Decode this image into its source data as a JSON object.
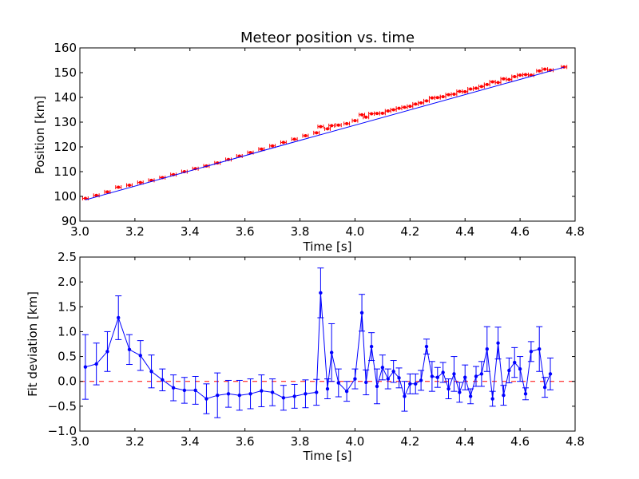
{
  "chart_data": [
    {
      "type": "scatter",
      "title": "Meteor position vs. time",
      "xlabel": "Time [s]",
      "ylabel": "Position [km]",
      "xlim": [
        3.0,
        4.8
      ],
      "ylim": [
        90,
        160
      ],
      "xticks": [
        "3.0",
        "3.2",
        "3.4",
        "3.6",
        "3.8",
        "4.0",
        "4.2",
        "4.4",
        "4.6",
        "4.8"
      ],
      "yticks": [
        "90",
        "100",
        "110",
        "120",
        "130",
        "140",
        "150",
        "160"
      ],
      "grid": false,
      "series": [
        {
          "kind": "points_with_xerror",
          "color": "#ff0000",
          "xerr": 0.01,
          "points": [
            [
              3.02,
              99.2
            ],
            [
              3.06,
              100.4
            ],
            [
              3.1,
              101.8
            ],
            [
              3.14,
              103.7
            ],
            [
              3.18,
              104.5
            ],
            [
              3.22,
              105.6
            ],
            [
              3.26,
              106.5
            ],
            [
              3.3,
              107.6
            ],
            [
              3.34,
              108.8
            ],
            [
              3.38,
              110.0
            ],
            [
              3.42,
              111.2
            ],
            [
              3.46,
              112.3
            ],
            [
              3.5,
              113.5
            ],
            [
              3.54,
              114.9
            ],
            [
              3.58,
              116.3
            ],
            [
              3.62,
              117.7
            ],
            [
              3.66,
              119.1
            ],
            [
              3.7,
              120.4
            ],
            [
              3.74,
              121.8
            ],
            [
              3.78,
              123.1
            ],
            [
              3.82,
              124.5
            ],
            [
              3.86,
              125.7
            ],
            [
              3.875,
              128.2
            ],
            [
              3.9,
              127.3
            ],
            [
              3.915,
              128.6
            ],
            [
              3.94,
              128.8
            ],
            [
              3.97,
              129.4
            ],
            [
              4.0,
              130.6
            ],
            [
              4.025,
              133.0
            ],
            [
              4.04,
              132.0
            ],
            [
              4.06,
              133.4
            ],
            [
              4.08,
              133.5
            ],
            [
              4.1,
              133.6
            ],
            [
              4.12,
              134.5
            ],
            [
              4.14,
              135.0
            ],
            [
              4.16,
              135.6
            ],
            [
              4.18,
              136.0
            ],
            [
              4.2,
              136.4
            ],
            [
              4.22,
              137.3
            ],
            [
              4.24,
              137.8
            ],
            [
              4.26,
              138.6
            ],
            [
              4.28,
              139.8
            ],
            [
              4.3,
              139.9
            ],
            [
              4.32,
              140.3
            ],
            [
              4.34,
              141.1
            ],
            [
              4.36,
              141.3
            ],
            [
              4.38,
              142.4
            ],
            [
              4.4,
              142.3
            ],
            [
              4.42,
              143.4
            ],
            [
              4.44,
              143.7
            ],
            [
              4.46,
              144.4
            ],
            [
              4.48,
              145.2
            ],
            [
              4.5,
              146.3
            ],
            [
              4.52,
              146.0
            ],
            [
              4.54,
              147.5
            ],
            [
              4.56,
              147.2
            ],
            [
              4.58,
              148.4
            ],
            [
              4.6,
              149.0
            ],
            [
              4.62,
              149.2
            ],
            [
              4.64,
              149.0
            ],
            [
              4.67,
              150.7
            ],
            [
              4.69,
              151.4
            ],
            [
              4.71,
              151.0
            ],
            [
              4.76,
              152.3
            ]
          ]
        },
        {
          "kind": "fit_line",
          "color": "#0000ff",
          "points": [
            [
              3.02,
              98.6
            ],
            [
              4.76,
              152.2
            ]
          ]
        }
      ]
    },
    {
      "type": "line",
      "title": "",
      "xlabel": "Time [s]",
      "ylabel": "Fit deviation [km]",
      "xlim": [
        3.0,
        4.8
      ],
      "ylim": [
        -1.0,
        2.5
      ],
      "xticks": [
        "3.0",
        "3.2",
        "3.4",
        "3.6",
        "3.8",
        "4.0",
        "4.2",
        "4.4",
        "4.6",
        "4.8"
      ],
      "yticks": [
        "−1.0",
        "−0.5",
        "0.0",
        "0.5",
        "1.0",
        "1.5",
        "2.0",
        "2.5"
      ],
      "grid": false,
      "zero_line": {
        "y": 0.0,
        "color": "#ff0000",
        "style": "dashed"
      },
      "series": [
        {
          "kind": "line_with_yerror",
          "color": "#0000ff",
          "points": [
            [
              3.02,
              0.29,
              0.65
            ],
            [
              3.06,
              0.35,
              0.42
            ],
            [
              3.1,
              0.6,
              0.4
            ],
            [
              3.14,
              1.28,
              0.44
            ],
            [
              3.18,
              0.64,
              0.3
            ],
            [
              3.22,
              0.52,
              0.3
            ],
            [
              3.26,
              0.2,
              0.33
            ],
            [
              3.3,
              0.03,
              0.22
            ],
            [
              3.34,
              -0.13,
              0.26
            ],
            [
              3.38,
              -0.18,
              0.26
            ],
            [
              3.42,
              -0.18,
              0.28
            ],
            [
              3.46,
              -0.35,
              0.3
            ],
            [
              3.5,
              -0.28,
              0.45
            ],
            [
              3.54,
              -0.25,
              0.27
            ],
            [
              3.58,
              -0.28,
              0.3
            ],
            [
              3.62,
              -0.25,
              0.3
            ],
            [
              3.66,
              -0.19,
              0.32
            ],
            [
              3.7,
              -0.22,
              0.27
            ],
            [
              3.74,
              -0.33,
              0.25
            ],
            [
              3.78,
              -0.3,
              0.24
            ],
            [
              3.82,
              -0.25,
              0.28
            ],
            [
              3.86,
              -0.22,
              0.26
            ],
            [
              3.875,
              1.78,
              0.5
            ],
            [
              3.9,
              -0.15,
              0.2
            ],
            [
              3.915,
              0.58,
              0.58
            ],
            [
              3.94,
              -0.03,
              0.28
            ],
            [
              3.97,
              -0.2,
              0.2
            ],
            [
              4.0,
              0.05,
              0.2
            ],
            [
              4.025,
              1.38,
              0.37
            ],
            [
              4.04,
              -0.02,
              0.25
            ],
            [
              4.06,
              0.7,
              0.28
            ],
            [
              4.08,
              -0.1,
              0.35
            ],
            [
              4.1,
              0.28,
              0.25
            ],
            [
              4.12,
              0.05,
              0.2
            ],
            [
              4.14,
              0.2,
              0.22
            ],
            [
              4.16,
              0.07,
              0.2
            ],
            [
              4.18,
              -0.3,
              0.3
            ],
            [
              4.2,
              -0.05,
              0.2
            ],
            [
              4.22,
              -0.05,
              0.2
            ],
            [
              4.24,
              0.02,
              0.2
            ],
            [
              4.26,
              0.7,
              0.15
            ],
            [
              4.28,
              0.1,
              0.3
            ],
            [
              4.3,
              0.08,
              0.2
            ],
            [
              4.32,
              0.18,
              0.2
            ],
            [
              4.34,
              -0.15,
              0.2
            ],
            [
              4.36,
              0.15,
              0.35
            ],
            [
              4.38,
              -0.22,
              0.2
            ],
            [
              4.4,
              0.08,
              0.25
            ],
            [
              4.42,
              -0.3,
              0.15
            ],
            [
              4.44,
              0.1,
              0.2
            ],
            [
              4.46,
              0.15,
              0.25
            ],
            [
              4.48,
              0.65,
              0.45
            ],
            [
              4.5,
              -0.35,
              0.15
            ],
            [
              4.52,
              0.77,
              0.32
            ],
            [
              4.54,
              -0.28,
              0.2
            ],
            [
              4.56,
              0.22,
              0.25
            ],
            [
              4.58,
              0.38,
              0.3
            ],
            [
              4.6,
              0.25,
              0.25
            ],
            [
              4.62,
              -0.25,
              0.12
            ],
            [
              4.64,
              0.6,
              0.2
            ],
            [
              4.67,
              0.65,
              0.45
            ],
            [
              4.69,
              -0.12,
              0.2
            ],
            [
              4.71,
              0.15,
              0.32
            ]
          ]
        }
      ]
    }
  ]
}
